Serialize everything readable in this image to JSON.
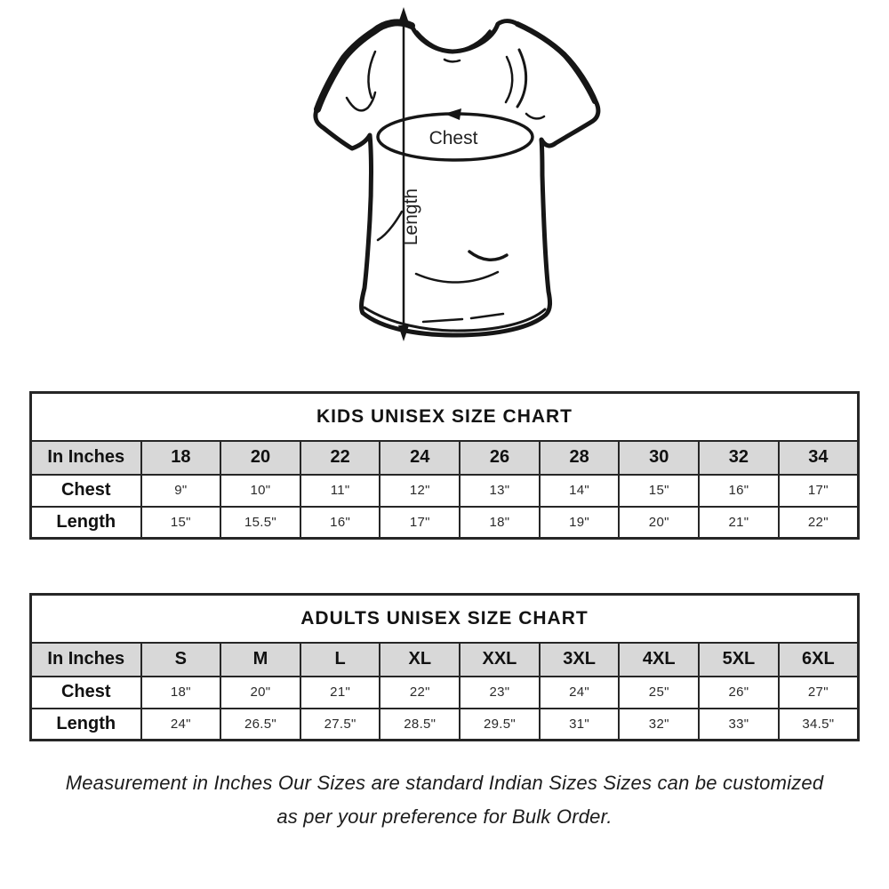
{
  "diagram": {
    "chest_label": "Chest",
    "length_label": "Length"
  },
  "kids_chart": {
    "title": "KIDS UNISEX SIZE CHART",
    "header_label": "In Inches",
    "sizes": [
      "18",
      "20",
      "22",
      "24",
      "26",
      "28",
      "30",
      "32",
      "34"
    ],
    "rows": [
      {
        "label": "Chest",
        "values": [
          "9\"",
          "10\"",
          "11\"",
          "12\"",
          "13\"",
          "14\"",
          "15\"",
          "16\"",
          "17\""
        ]
      },
      {
        "label": "Length",
        "values": [
          "15\"",
          "15.5\"",
          "16\"",
          "17\"",
          "18\"",
          "19\"",
          "20\"",
          "21\"",
          "22\""
        ]
      }
    ]
  },
  "adults_chart": {
    "title": "ADULTS UNISEX SIZE CHART",
    "header_label": "In Inches",
    "sizes": [
      "S",
      "M",
      "L",
      "XL",
      "XXL",
      "3XL",
      "4XL",
      "5XL",
      "6XL"
    ],
    "rows": [
      {
        "label": "Chest",
        "values": [
          "18\"",
          "20\"",
          "21\"",
          "22\"",
          "23\"",
          "24\"",
          "25\"",
          "26\"",
          "27\""
        ]
      },
      {
        "label": "Length",
        "values": [
          "24\"",
          "26.5\"",
          "27.5\"",
          "28.5\"",
          "29.5\"",
          "31\"",
          "32\"",
          "33\"",
          "34.5\""
        ]
      }
    ]
  },
  "footer": {
    "line1": "Measurement in Inches Our Sizes are standard Indian Sizes Sizes can be customized",
    "line2": "as per your preference for Bulk Order."
  },
  "colors": {
    "header_bg": "#d8d8d8",
    "border": "#262626",
    "text": "#111111",
    "sketch_stroke": "#161616"
  }
}
